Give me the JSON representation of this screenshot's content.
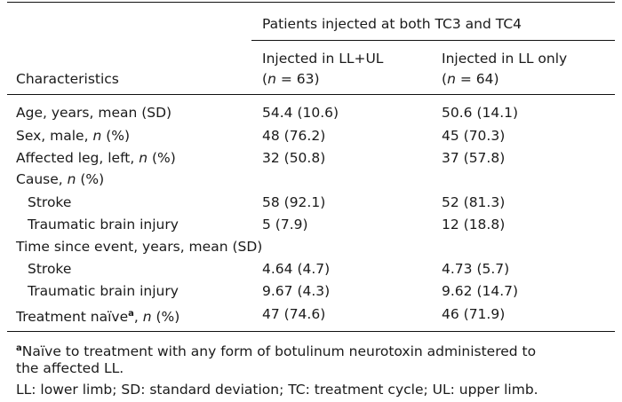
{
  "table": {
    "header": {
      "group_label": "Patients injected at both TC3 and TC4",
      "characteristics_label": "Characteristics",
      "col1_line1": "Injected in LL+UL",
      "col1_n_italic": "n",
      "col1_n_rest": " = 63)",
      "col2_line1": "Injected in LL only",
      "col2_n_italic": "n",
      "col2_n_rest": " = 64)"
    },
    "rows": [
      {
        "label": "Age, years, mean (SD)",
        "v1": "54.4 (10.6)",
        "v2": "50.6 (14.1)"
      },
      {
        "label_pre": "Sex, male, ",
        "label_italic": "n",
        "label_post": " (%)",
        "v1": "48 (76.2)",
        "v2": "45 (70.3)"
      },
      {
        "label_pre": "Affected leg, left, ",
        "label_italic": "n",
        "label_post": " (%)",
        "v1": "32 (50.8)",
        "v2": "37 (57.8)"
      },
      {
        "label_pre": "Cause, ",
        "label_italic": "n",
        "label_post": " (%)",
        "v1": "",
        "v2": ""
      },
      {
        "label": "Stroke",
        "v1": "58 (92.1)",
        "v2": "52 (81.3)"
      },
      {
        "label": "Traumatic brain injury",
        "v1": "5 (7.9)",
        "v2": "12 (18.8)"
      },
      {
        "label": "Time since event, years, mean (SD)",
        "v1": "",
        "v2": ""
      },
      {
        "label": "Stroke",
        "v1": "4.64 (4.7)",
        "v2": "4.73 (5.7)"
      },
      {
        "label": "Traumatic brain injury",
        "v1": "9.67 (4.3)",
        "v2": "9.62 (14.7)"
      },
      {
        "label_pre": "Treatment naïve",
        "label_sup": "a",
        "label_mid": ", ",
        "label_italic": "n",
        "label_post": " (%)",
        "v1": "47 (74.6)",
        "v2": "46 (71.9)"
      }
    ],
    "footnotes": {
      "a_marker": "a",
      "a_line1": "Naïve to treatment with any form of botulinum neurotoxin administered to",
      "a_line2": "the affected LL.",
      "abbrev": "LL: lower limb; SD: standard deviation; TC: treatment cycle; UL: upper limb."
    }
  }
}
